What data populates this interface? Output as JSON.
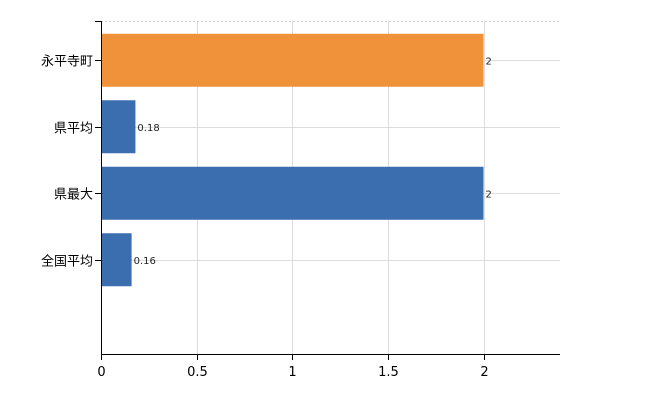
{
  "chart_data": {
    "type": "bar",
    "orientation": "horizontal",
    "categories": [
      "永平寺町",
      "県平均",
      "県最大",
      "全国平均"
    ],
    "values": [
      2,
      0.18,
      2,
      0.16
    ],
    "value_labels": [
      "2",
      "0.18",
      "2",
      "0.16"
    ],
    "bar_colors": [
      "#f0923a",
      "#3a6eaf",
      "#3a6eaf",
      "#3a6eaf"
    ],
    "xlim": [
      0,
      2.4
    ],
    "x_ticks": [
      0,
      0.5,
      1,
      1.5,
      2
    ],
    "x_tick_labels": [
      "0",
      "0.5",
      "1",
      "1.5",
      "2"
    ],
    "grid": true,
    "legend": "none"
  }
}
